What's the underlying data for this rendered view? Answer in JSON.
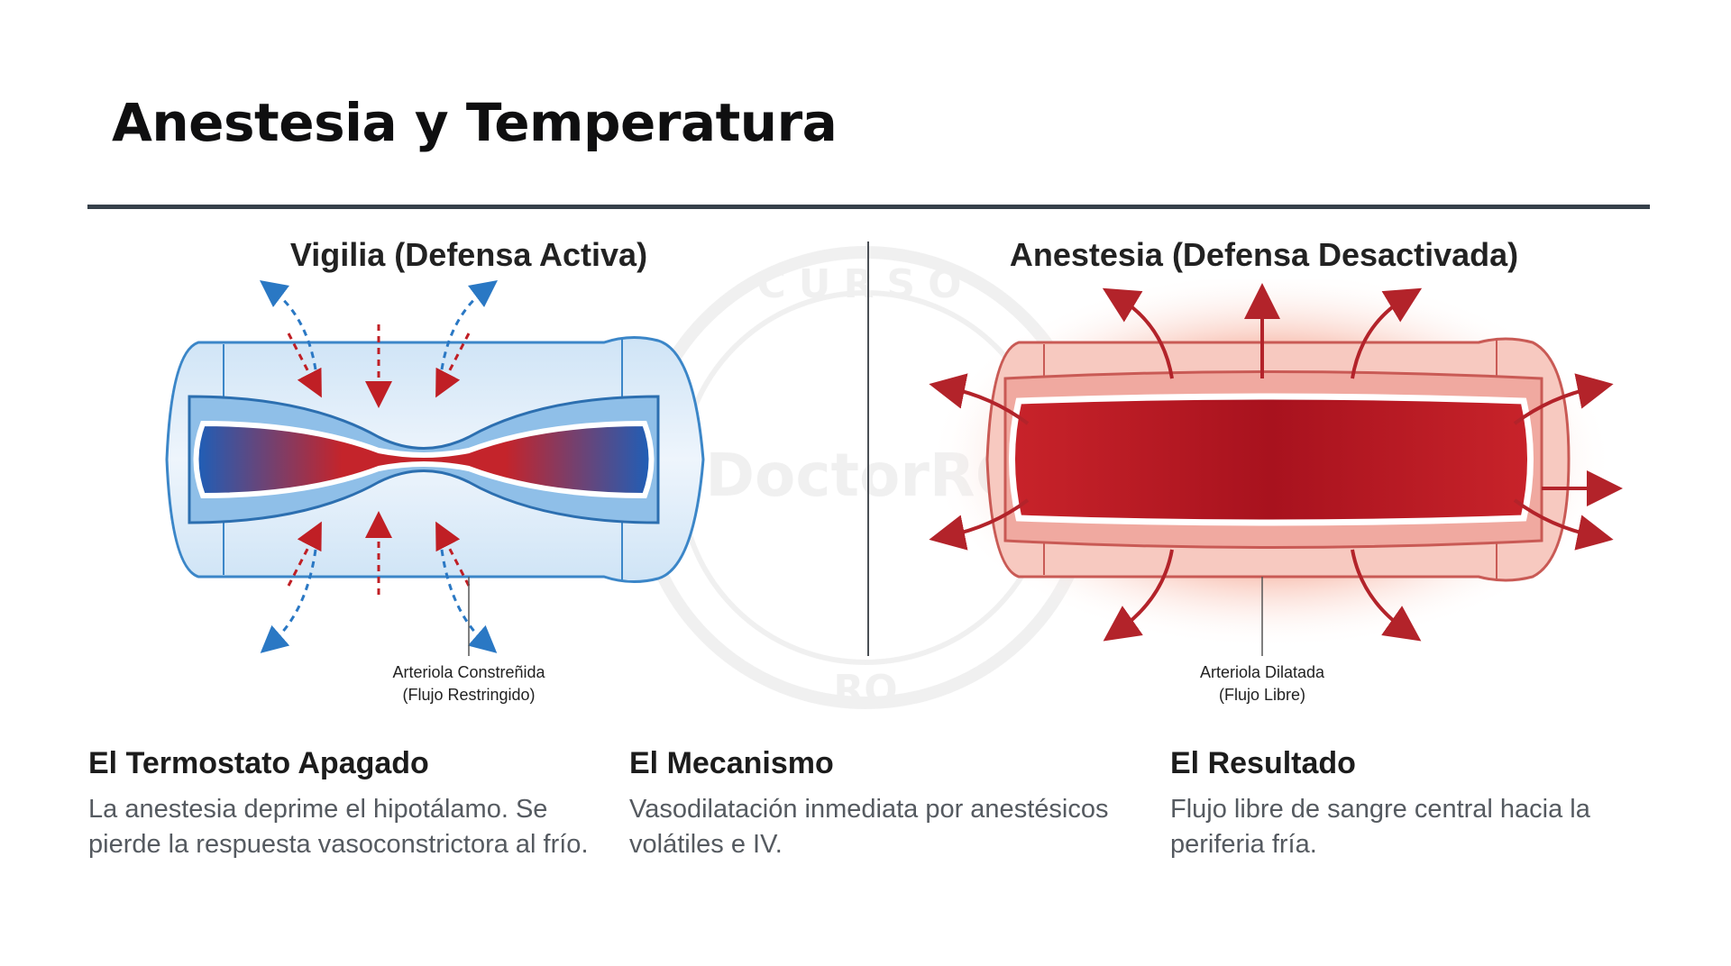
{
  "title": "Anestesia y Temperatura",
  "panels": {
    "left": {
      "heading": "Vigilia (Defensa Activa)",
      "caption_line1": "Arteriola Constreñida",
      "caption_line2": "(Flujo Restringido)"
    },
    "right": {
      "heading": "Anestesia (Defensa Desactivada)",
      "caption_line1": "Arteriola Dilatada",
      "caption_line2": "(Flujo Libre)"
    }
  },
  "watermark": {
    "top": "CURSO",
    "middle": "DoctorRO",
    "bottom": "RO"
  },
  "columns": [
    {
      "heading": "El Termostato Apagado",
      "body": "La anestesia deprime el hipotálamo. Se pierde la respuesta vasoconstrictora al frío."
    },
    {
      "heading": "El Mecanismo",
      "body": "Vasodilatación inmediata por anestésicos volátiles e IV."
    },
    {
      "heading": "El Resultado",
      "body": "Flujo libre de sangre central hacia la periferia fría."
    }
  ],
  "colors": {
    "cold": "#2a78c4",
    "warm": "#c01f25",
    "rule": "#36404a"
  }
}
